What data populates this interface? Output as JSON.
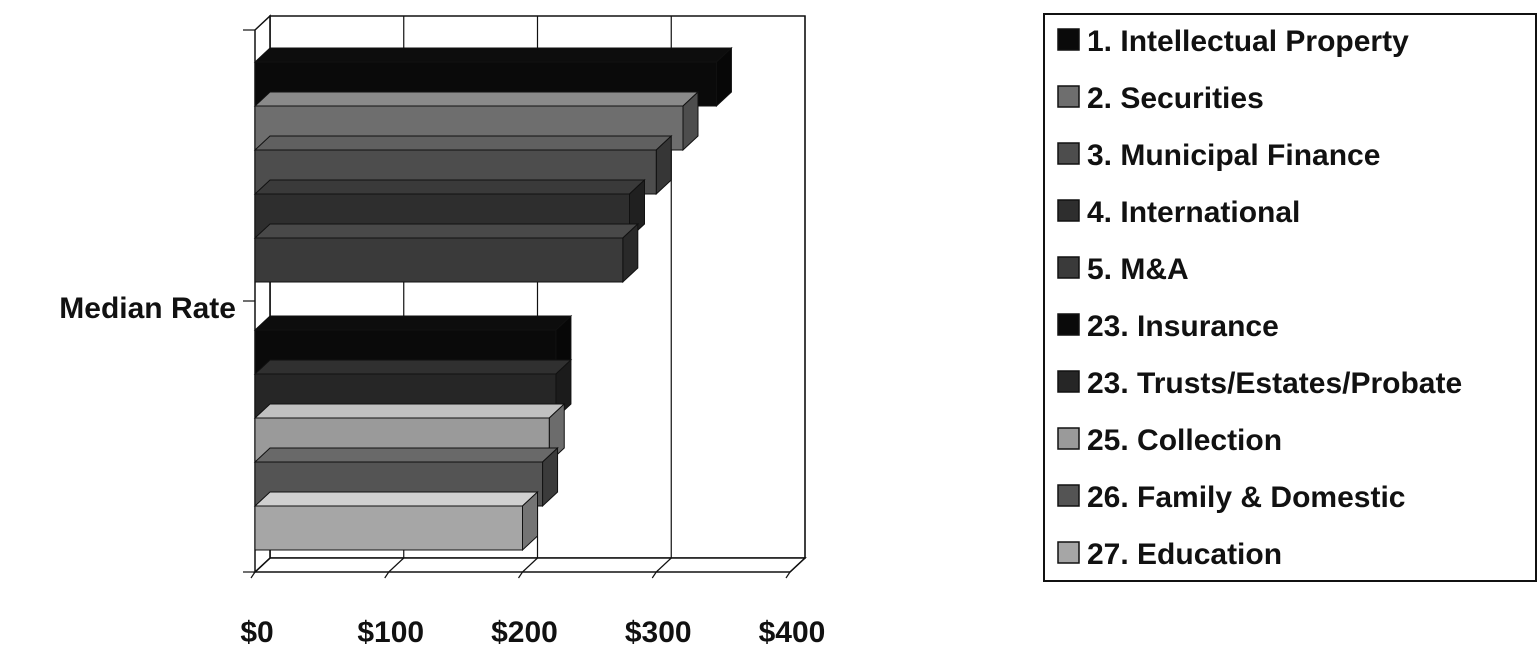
{
  "chart_data": {
    "type": "bar",
    "orientation": "horizontal",
    "three_d": true,
    "ylabel": "Median Rate",
    "xlim": [
      0,
      400
    ],
    "x_ticks": [
      "$0",
      "$100",
      "$200",
      "$300",
      "$400"
    ],
    "grid": "vertical",
    "legend_position": "right",
    "series": [
      {
        "name": "1.  Intellectual Property",
        "value": 345,
        "color": "#0a0a0a"
      },
      {
        "name": "2.  Securities",
        "value": 320,
        "color": "#6e6e6e"
      },
      {
        "name": "3.  Municipal Finance",
        "value": 300,
        "color": "#4d4d4d"
      },
      {
        "name": "4.  International",
        "value": 280,
        "color": "#2e2e2e"
      },
      {
        "name": "5.  M&A",
        "value": 275,
        "color": "#3a3a3a"
      },
      {
        "name": "23. Insurance",
        "value": 225,
        "color": "#0a0a0a"
      },
      {
        "name": "23. Trusts/Estates/Probate",
        "value": 225,
        "color": "#262626"
      },
      {
        "name": "25. Collection",
        "value": 220,
        "color": "#9a9a9a"
      },
      {
        "name": "26. Family & Domestic",
        "value": 215,
        "color": "#545454"
      },
      {
        "name": "27. Education",
        "value": 200,
        "color": "#a6a6a6"
      }
    ]
  }
}
